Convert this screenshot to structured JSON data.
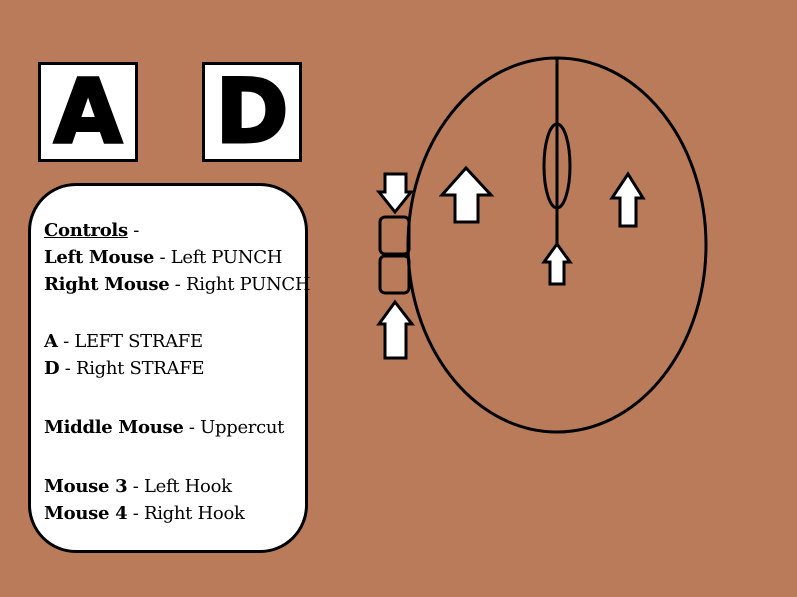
{
  "keys": {
    "a": "A",
    "d": "D"
  },
  "controls": {
    "heading": "Controls",
    "heading_sep": " -",
    "lines": [
      {
        "key": "Left Mouse",
        "sep": " - ",
        "action": "Left PUNCH"
      },
      {
        "key": "Right Mouse",
        "sep": " - ",
        "action": "Right PUNCH"
      },
      {
        "key": "A",
        "sep": " - ",
        "action": "LEFT STRAFE"
      },
      {
        "key": "D",
        "sep": " - ",
        "action": "Right STRAFE"
      },
      {
        "key": "Middle Mouse",
        "sep": " - ",
        "action": "Uppercut"
      },
      {
        "key": "Mouse 3",
        "sep": " - ",
        "action": "Left Hook"
      },
      {
        "key": "Mouse 4",
        "sep": " - ",
        "action": "Right Hook"
      }
    ]
  },
  "colors": {
    "background": "#b97b5a",
    "panel": "#ffffff",
    "ink": "#000000"
  }
}
